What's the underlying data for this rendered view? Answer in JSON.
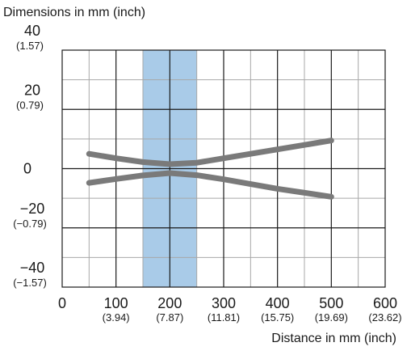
{
  "chart_data": {
    "type": "line",
    "ylabel": "Dimensions in mm (inch)",
    "xlabel": "Distance in mm (inch)",
    "xlim": [
      0,
      600
    ],
    "ylim": [
      -40,
      40
    ],
    "grid": true,
    "x_ticks": [
      {
        "value": 0,
        "label": "0",
        "sublabel": ""
      },
      {
        "value": 100,
        "label": "100",
        "sublabel": "(3.94)"
      },
      {
        "value": 200,
        "label": "200",
        "sublabel": "(7.87)"
      },
      {
        "value": 300,
        "label": "300",
        "sublabel": "(11.81)"
      },
      {
        "value": 400,
        "label": "400",
        "sublabel": "(15.75)"
      },
      {
        "value": 500,
        "label": "500",
        "sublabel": "(19.69)"
      },
      {
        "value": 600,
        "label": "600",
        "sublabel": "(23.62)"
      }
    ],
    "y_ticks": [
      {
        "value": 40,
        "label": "40",
        "sublabel": "(1.57)"
      },
      {
        "value": 20,
        "label": "20",
        "sublabel": "(0.79)"
      },
      {
        "value": 0,
        "label": "0",
        "sublabel": ""
      },
      {
        "value": -20,
        "label": "−20",
        "sublabel": "(−0.79)"
      },
      {
        "value": -40,
        "label": "−40",
        "sublabel": "(−1.57)"
      }
    ],
    "highlight_band": {
      "x_from": 150,
      "x_to": 250,
      "color": "#a9cbe8"
    },
    "series": [
      {
        "points": [
          [
            50,
            5
          ],
          [
            100,
            3.5
          ],
          [
            150,
            2.2
          ],
          [
            200,
            1.5
          ],
          [
            250,
            2
          ],
          [
            300,
            3.5
          ],
          [
            400,
            6.5
          ],
          [
            500,
            9.5
          ]
        ],
        "color": "#7a7a7a"
      },
      {
        "points": [
          [
            50,
            -4.8
          ],
          [
            100,
            -3.5
          ],
          [
            150,
            -2.3
          ],
          [
            200,
            -1.5
          ],
          [
            250,
            -2.2
          ],
          [
            300,
            -3.6
          ],
          [
            400,
            -6.8
          ],
          [
            500,
            -9.5
          ]
        ],
        "color": "#7a7a7a"
      }
    ]
  }
}
